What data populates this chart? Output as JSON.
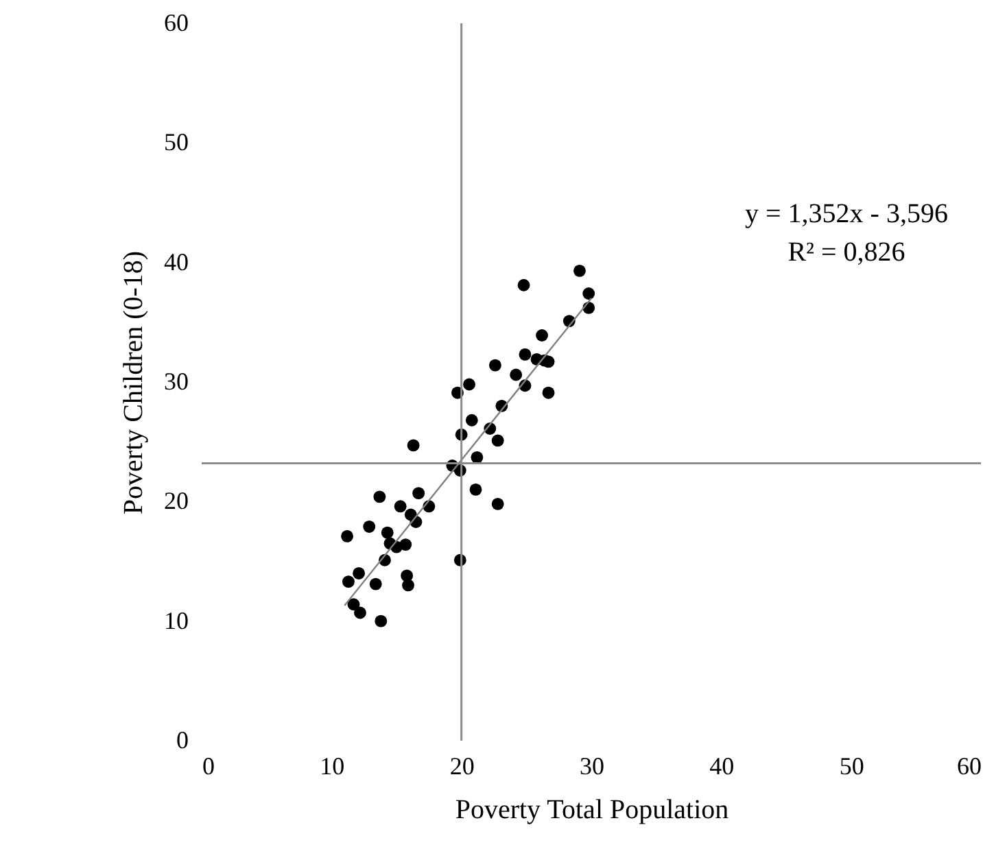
{
  "chart_data": {
    "type": "scatter",
    "xlabel": "Poverty Total Population",
    "ylabel": "Poverty Children (0-18)",
    "xlim": [
      0,
      60
    ],
    "xticks": [
      0,
      10,
      20,
      30,
      40,
      50,
      60
    ],
    "ylim": [
      0,
      60
    ],
    "yticks": [
      0,
      10,
      20,
      30,
      40,
      50,
      60
    ],
    "grid": false,
    "annotations": [
      "y = 1,352x - 3,596",
      "R² = 0,826"
    ],
    "ref_lines": [
      {
        "axis": "x",
        "value": 20,
        "color": "#8c8c8c"
      },
      {
        "axis": "y",
        "value": 23.2,
        "color": "#8c8c8c"
      }
    ],
    "series": [
      {
        "type": "scatter",
        "color": "#000000",
        "marker": "circle",
        "x": [
          11.2,
          11.3,
          11.7,
          12.2,
          12.1,
          12.9,
          13.7,
          13.4,
          13.8,
          14.3,
          14.1,
          14.5,
          15.0,
          15.3,
          15.7,
          15.8,
          15.9,
          16.3,
          16.1,
          16.5,
          16.7,
          17.5,
          19.3,
          19.9,
          19.9,
          19.7,
          20.6,
          20.0,
          20.8,
          21.2,
          21.1,
          22.2,
          22.8,
          22.8,
          23.1,
          22.6,
          24.2,
          24.9,
          24.9,
          25.8,
          26.4,
          26.2,
          26.7,
          26.7,
          24.8,
          28.3,
          29.1,
          29.8,
          29.8
        ],
        "values": [
          17.1,
          13.3,
          11.4,
          10.7,
          14.0,
          17.9,
          20.4,
          13.1,
          10.0,
          17.4,
          15.1,
          16.5,
          16.2,
          19.6,
          16.4,
          13.8,
          13.0,
          24.7,
          18.9,
          18.3,
          20.7,
          19.6,
          23.0,
          22.6,
          15.1,
          29.1,
          29.8,
          25.6,
          26.8,
          23.7,
          21.0,
          26.1,
          25.1,
          19.8,
          28.0,
          31.4,
          30.6,
          29.7,
          32.3,
          31.9,
          31.8,
          33.9,
          31.7,
          29.1,
          38.1,
          35.1,
          39.3,
          37.4,
          36.2
        ]
      },
      {
        "type": "line",
        "color": "#808080",
        "marker": "none",
        "x": [
          11,
          30
        ],
        "values": [
          11.3,
          37.0
        ]
      }
    ]
  }
}
